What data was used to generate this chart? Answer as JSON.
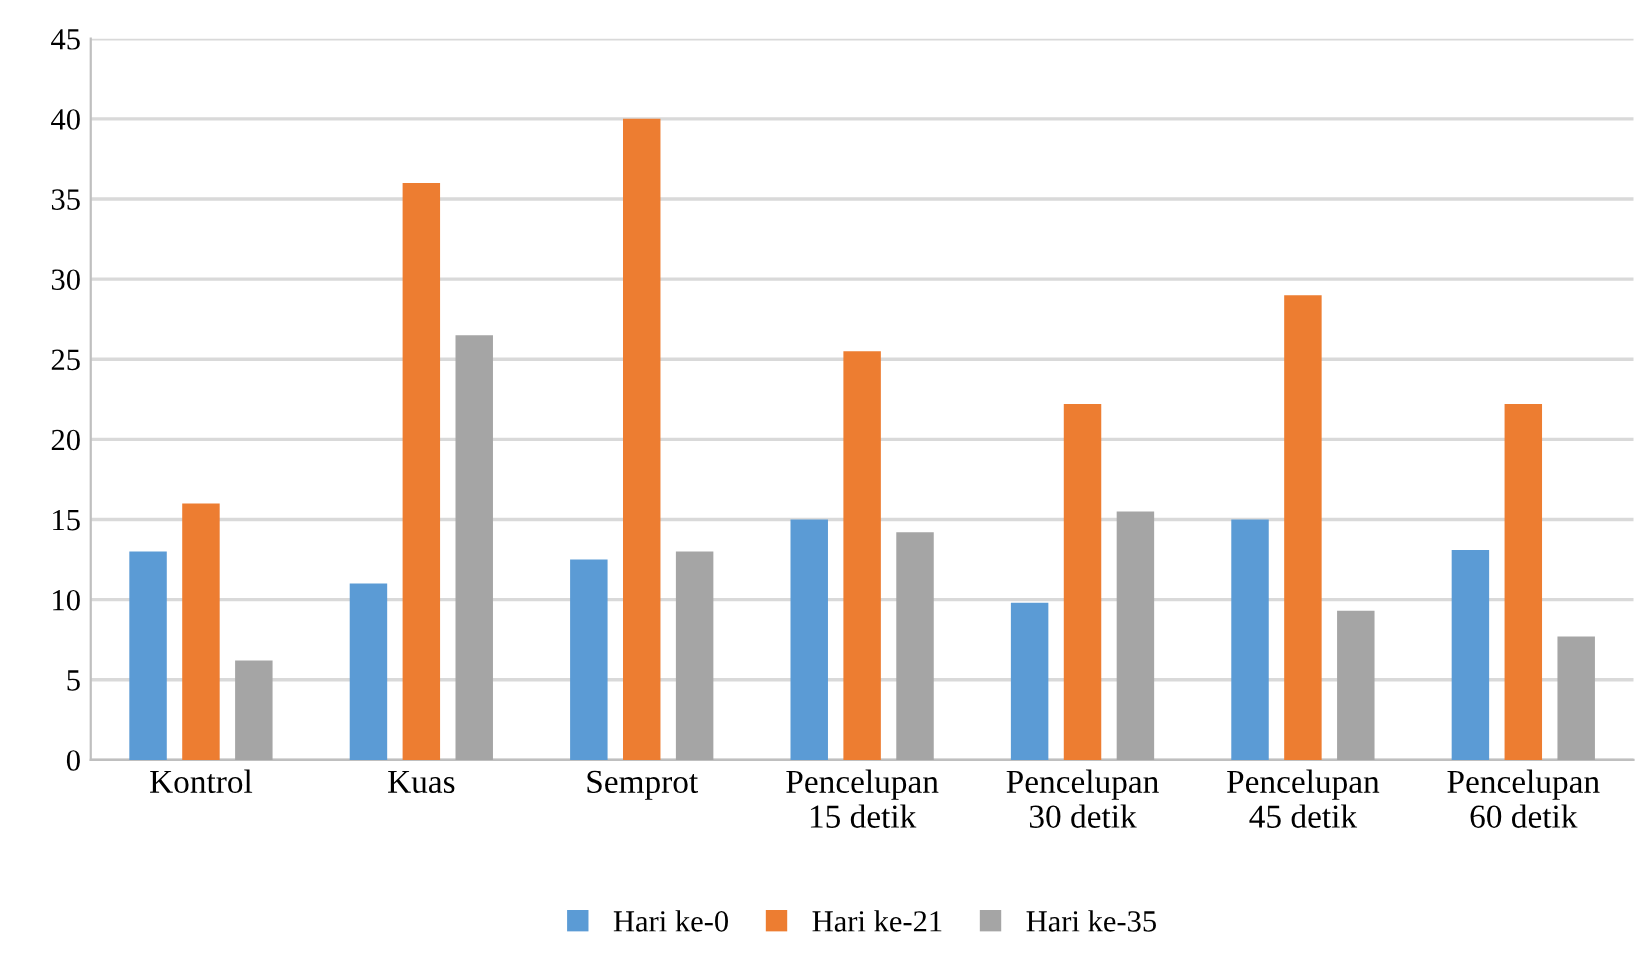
{
  "chart_data": {
    "type": "bar",
    "categories": [
      "Kontrol",
      "Kuas",
      "Semprot",
      "Pencelupan\n15 detik",
      "Pencelupan\n30 detik",
      "Pencelupan\n45 detik",
      "Pencelupan\n60 detik"
    ],
    "series": [
      {
        "name": "Hari ke-0",
        "color": "#5b9bd5",
        "values": [
          13,
          11,
          12.5,
          15,
          9.8,
          15,
          13.1
        ]
      },
      {
        "name": "Hari ke-21",
        "color": "#ed7d31",
        "values": [
          16,
          36,
          40,
          25.5,
          22.2,
          29,
          22.2
        ]
      },
      {
        "name": "Hari ke-35",
        "color": "#a5a5a5",
        "values": [
          6.2,
          26.5,
          13,
          14.2,
          15.5,
          9.3,
          7.7
        ]
      }
    ],
    "ylim": [
      0,
      45
    ],
    "yticks": [
      0,
      5,
      10,
      15,
      20,
      25,
      30,
      35,
      40,
      45
    ],
    "grid": "y",
    "legend": "bottom"
  }
}
